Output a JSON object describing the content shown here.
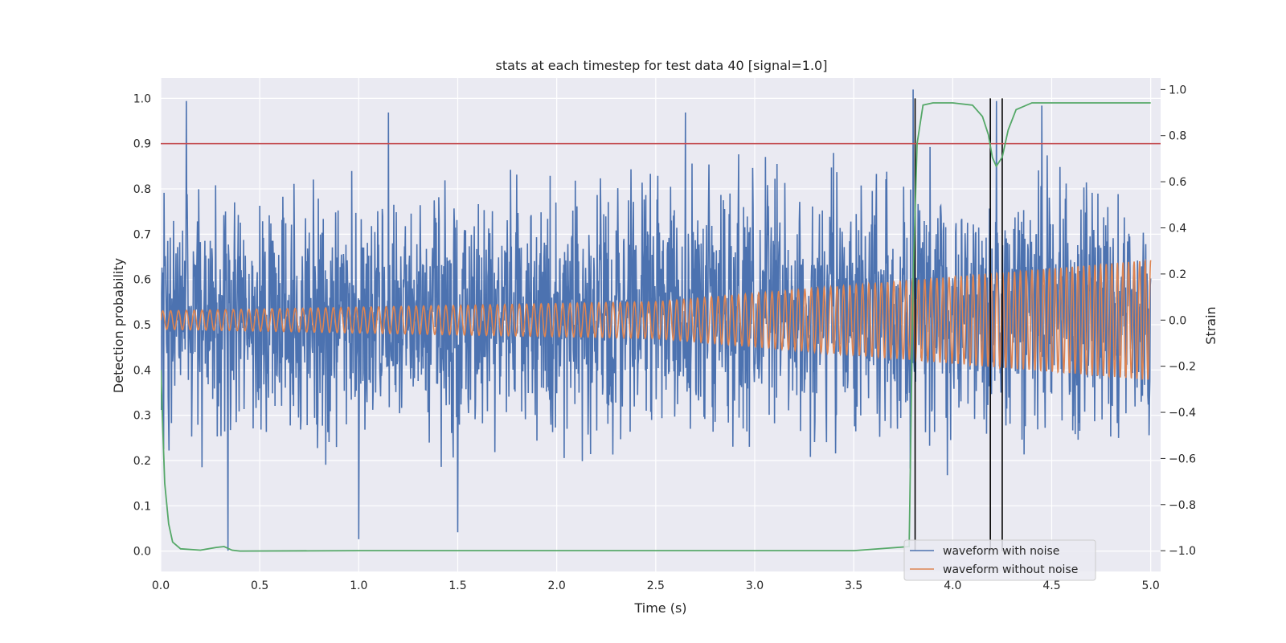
{
  "chart_data": {
    "type": "line",
    "title": "stats at each timestep for test data 40 [signal=1.0]",
    "xlabel": "Time (s)",
    "ylabel": "Detection probability",
    "ylabel_right": "Strain",
    "xlim": [
      0.0,
      5.05
    ],
    "ylim": [
      -0.045,
      1.045
    ],
    "ylim_right": [
      -1.09,
      1.05
    ],
    "xticks": [
      "0.0",
      "0.5",
      "1.0",
      "1.5",
      "2.0",
      "2.5",
      "3.0",
      "3.5",
      "4.0",
      "4.5",
      "5.0"
    ],
    "yticks": [
      "0.0",
      "0.1",
      "0.2",
      "0.3",
      "0.4",
      "0.5",
      "0.6",
      "0.7",
      "0.8",
      "0.9",
      "1.0"
    ],
    "yticks_right": [
      "−1.0",
      "−0.8",
      "−0.6",
      "−0.4",
      "−0.2",
      "0.0",
      "0.2",
      "0.4",
      "0.6",
      "0.8",
      "1.0"
    ],
    "grid": true,
    "legend_position": "lower-right",
    "threshold": {
      "y": 0.9,
      "color": "#c44e52"
    },
    "detection_markers_x": [
      3.81,
      4.19,
      4.25
    ],
    "series": [
      {
        "name": "waveform with noise",
        "axis": "right",
        "color": "#4c72b0",
        "noise_amplitude_envelope": [
          {
            "t": 0.0,
            "max": 0.75,
            "min": -0.75
          },
          {
            "t": 2.5,
            "max": 0.85,
            "min": -0.8
          },
          {
            "t": 5.0,
            "max": 0.8,
            "min": -0.7
          }
        ],
        "extremes": [
          {
            "t": 0.13,
            "strain": 0.95
          },
          {
            "t": 0.34,
            "strain": -1.0
          },
          {
            "t": 1.0,
            "strain": -0.95
          },
          {
            "t": 1.15,
            "strain": 0.9
          },
          {
            "t": 1.5,
            "strain": -0.92
          },
          {
            "t": 2.65,
            "strain": 0.9
          },
          {
            "t": 3.8,
            "strain": 1.0
          },
          {
            "t": 4.22,
            "strain": 0.95
          },
          {
            "t": 4.45,
            "strain": 0.93
          }
        ]
      },
      {
        "name": "waveform without noise",
        "axis": "right",
        "color": "#dd8452",
        "waveform_envelope": [
          {
            "t": 0.0,
            "amplitude": 0.04,
            "frequency_hz": 25
          },
          {
            "t": 2.5,
            "amplitude": 0.08,
            "frequency_hz": 28
          },
          {
            "t": 5.0,
            "amplitude": 0.26,
            "frequency_hz": 36
          }
        ]
      },
      {
        "name": "",
        "axis": "left",
        "color": "#55a868",
        "x": [
          0.0,
          0.02,
          0.04,
          0.06,
          0.1,
          0.2,
          0.28,
          0.32,
          0.36,
          0.4,
          1.0,
          2.0,
          3.0,
          3.5,
          3.78,
          3.8,
          3.82,
          3.85,
          3.9,
          4.0,
          4.1,
          4.15,
          4.18,
          4.2,
          4.22,
          4.25,
          4.28,
          4.32,
          4.4,
          5.0
        ],
        "y": [
          0.4,
          0.15,
          0.06,
          0.02,
          0.005,
          0.002,
          0.008,
          0.01,
          0.002,
          0.0,
          0.001,
          0.001,
          0.001,
          0.001,
          0.01,
          0.6,
          0.9,
          0.985,
          0.99,
          0.99,
          0.985,
          0.96,
          0.92,
          0.87,
          0.85,
          0.87,
          0.93,
          0.975,
          0.99,
          0.99
        ]
      }
    ]
  }
}
